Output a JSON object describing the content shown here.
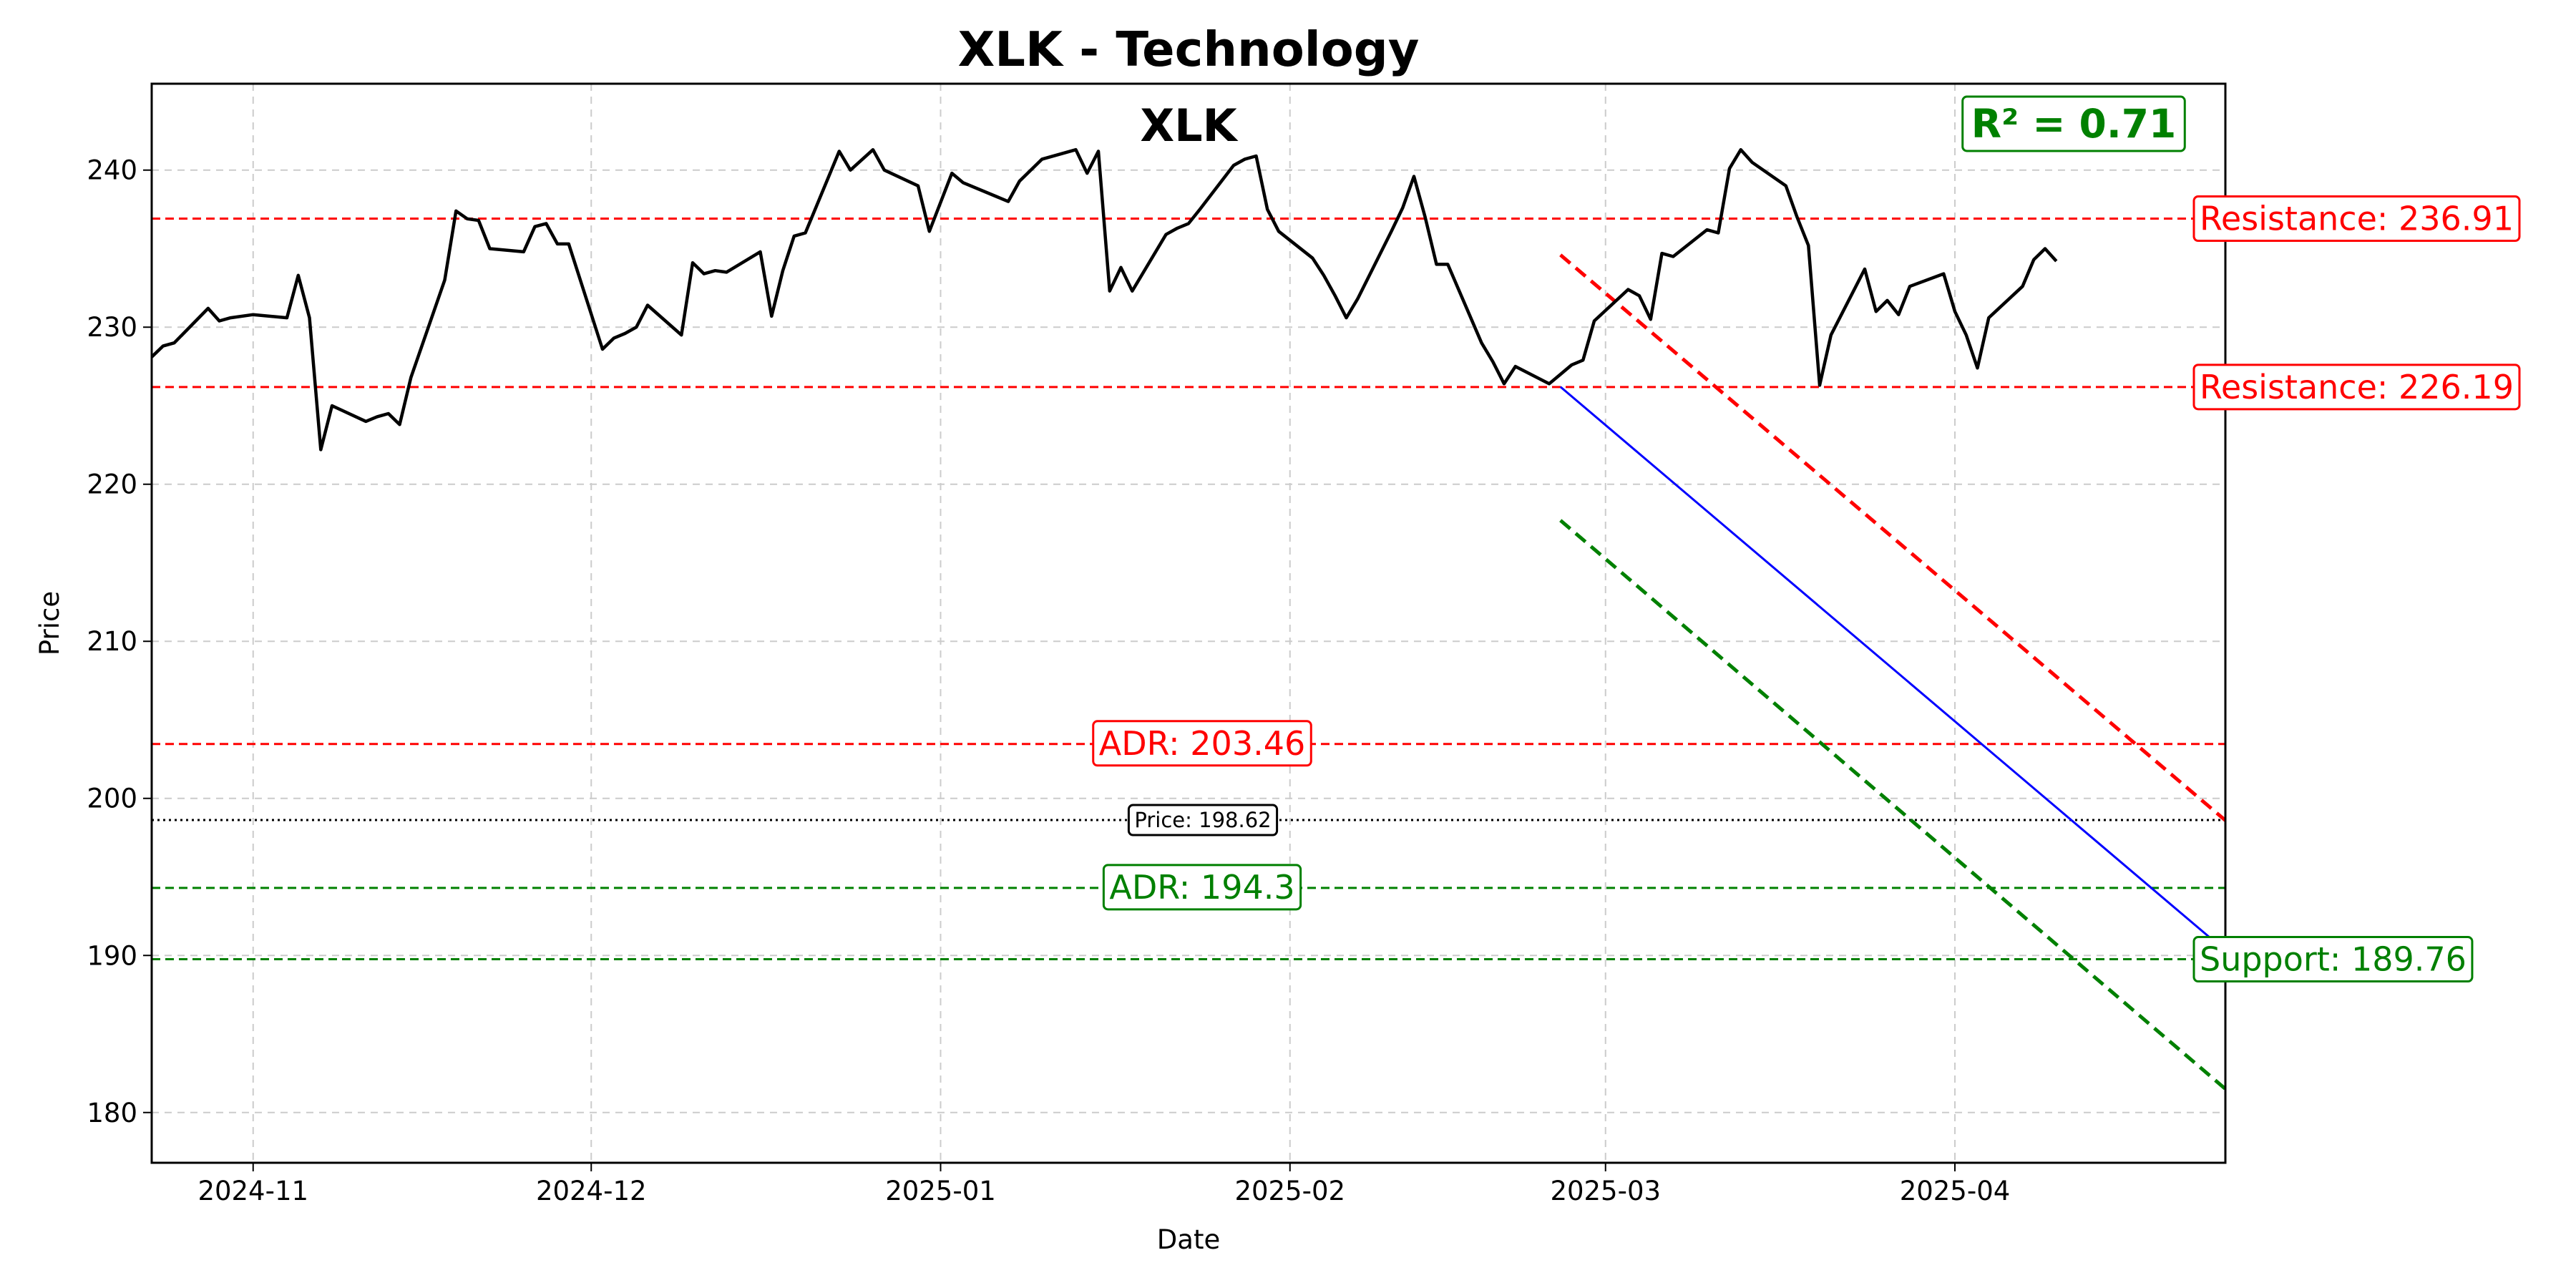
{
  "chart_data": {
    "type": "line",
    "title": "XLK - Technology",
    "subtitle": "XLK",
    "xlabel": "Date",
    "ylabel": "Price",
    "xlim": [
      "2024-10-23",
      "2025-04-25"
    ],
    "ylim": [
      176.8,
      245.5
    ],
    "grid": true,
    "x_ticks": [
      {
        "date": "2024-11-01",
        "label": "2024-11"
      },
      {
        "date": "2024-12-01",
        "label": "2024-12"
      },
      {
        "date": "2025-01-01",
        "label": "2025-01"
      },
      {
        "date": "2025-02-01",
        "label": "2025-02"
      },
      {
        "date": "2025-03-01",
        "label": "2025-03"
      },
      {
        "date": "2025-04-01",
        "label": "2025-04"
      }
    ],
    "y_ticks": [
      180,
      190,
      200,
      210,
      220,
      230,
      240
    ],
    "series": [
      {
        "color": "#000000",
        "points": [
          [
            "2024-10-23",
            228.1
          ],
          [
            "2024-10-24",
            228.8
          ],
          [
            "2024-10-25",
            229.0
          ],
          [
            "2024-10-28",
            231.2
          ],
          [
            "2024-10-29",
            230.4
          ],
          [
            "2024-10-30",
            230.6
          ],
          [
            "2024-11-01",
            230.8
          ],
          [
            "2024-11-04",
            230.6
          ],
          [
            "2024-11-05",
            233.3
          ],
          [
            "2024-11-06",
            230.6
          ],
          [
            "2024-11-07",
            222.2
          ],
          [
            "2024-11-08",
            225.0
          ],
          [
            "2024-11-11",
            224.0
          ],
          [
            "2024-11-12",
            224.3
          ],
          [
            "2024-11-13",
            224.5
          ],
          [
            "2024-11-14",
            223.8
          ],
          [
            "2024-11-15",
            226.8
          ],
          [
            "2024-11-18",
            233.0
          ],
          [
            "2024-11-19",
            237.4
          ],
          [
            "2024-11-20",
            236.9
          ],
          [
            "2024-11-21",
            236.8
          ],
          [
            "2024-11-22",
            235.0
          ],
          [
            "2024-11-25",
            234.8
          ],
          [
            "2024-11-26",
            236.4
          ],
          [
            "2024-11-27",
            236.6
          ],
          [
            "2024-11-28",
            235.3
          ],
          [
            "2024-11-29",
            235.3
          ],
          [
            "2024-12-02",
            228.6
          ],
          [
            "2024-12-03",
            229.3
          ],
          [
            "2024-12-04",
            229.6
          ],
          [
            "2024-12-05",
            230.0
          ],
          [
            "2024-12-06",
            231.4
          ],
          [
            "2024-12-09",
            229.5
          ],
          [
            "2024-12-10",
            234.1
          ],
          [
            "2024-12-11",
            233.4
          ],
          [
            "2024-12-12",
            233.6
          ],
          [
            "2024-12-13",
            233.5
          ],
          [
            "2024-12-16",
            234.8
          ],
          [
            "2024-12-17",
            230.7
          ],
          [
            "2024-12-18",
            233.6
          ],
          [
            "2024-12-19",
            235.8
          ],
          [
            "2024-12-20",
            236.0
          ],
          [
            "2024-12-23",
            241.2
          ],
          [
            "2024-12-24",
            240.0
          ],
          [
            "2024-12-26",
            241.3
          ],
          [
            "2024-12-27",
            240.0
          ],
          [
            "2024-12-30",
            239.0
          ],
          [
            "2024-12-31",
            236.1
          ],
          [
            "2025-01-02",
            239.8
          ],
          [
            "2025-01-03",
            239.2
          ],
          [
            "2025-01-06",
            238.3
          ],
          [
            "2025-01-07",
            238.0
          ],
          [
            "2025-01-08",
            239.3
          ],
          [
            "2025-01-10",
            240.7
          ],
          [
            "2025-01-13",
            241.3
          ],
          [
            "2025-01-14",
            239.8
          ],
          [
            "2025-01-15",
            241.2
          ],
          [
            "2025-01-16",
            232.3
          ],
          [
            "2025-01-17",
            233.8
          ],
          [
            "2025-01-18",
            232.3
          ],
          [
            "2025-01-21",
            235.9
          ],
          [
            "2025-01-22",
            236.3
          ],
          [
            "2025-01-23",
            236.6
          ],
          [
            "2025-01-24",
            237.5
          ],
          [
            "2025-01-27",
            240.3
          ],
          [
            "2025-01-28",
            240.7
          ],
          [
            "2025-01-29",
            240.9
          ],
          [
            "2025-01-30",
            237.5
          ],
          [
            "2025-01-31",
            236.1
          ],
          [
            "2025-02-03",
            234.4
          ],
          [
            "2025-02-04",
            233.3
          ],
          [
            "2025-02-05",
            232.0
          ],
          [
            "2025-02-06",
            230.6
          ],
          [
            "2025-02-07",
            231.8
          ],
          [
            "2025-02-10",
            236.1
          ],
          [
            "2025-02-11",
            237.6
          ],
          [
            "2025-02-12",
            239.6
          ],
          [
            "2025-02-13",
            237.0
          ],
          [
            "2025-02-14",
            234.0
          ],
          [
            "2025-02-15",
            234.0
          ],
          [
            "2025-02-18",
            229.0
          ],
          [
            "2025-02-19",
            227.8
          ],
          [
            "2025-02-20",
            226.4
          ],
          [
            "2025-02-21",
            227.5
          ],
          [
            "2025-02-24",
            226.4
          ],
          [
            "2025-02-25",
            227.0
          ],
          [
            "2025-02-26",
            227.6
          ],
          [
            "2025-02-27",
            227.9
          ],
          [
            "2025-02-28",
            230.4
          ],
          [
            "2025-03-03",
            232.4
          ],
          [
            "2025-03-04",
            232.0
          ],
          [
            "2025-03-05",
            230.5
          ],
          [
            "2025-03-06",
            234.7
          ],
          [
            "2025-03-07",
            234.5
          ],
          [
            "2025-03-10",
            236.2
          ],
          [
            "2025-03-11",
            236.0
          ],
          [
            "2025-03-12",
            240.1
          ],
          [
            "2025-03-13",
            241.3
          ],
          [
            "2025-03-14",
            240.5
          ],
          [
            "2025-03-17",
            239.0
          ],
          [
            "2025-03-18",
            237.0
          ],
          [
            "2025-03-19",
            235.2
          ],
          [
            "2025-03-20",
            226.3
          ],
          [
            "2025-03-21",
            229.5
          ],
          [
            "2025-03-24",
            233.7
          ],
          [
            "2025-03-25",
            231.0
          ],
          [
            "2025-03-26",
            231.7
          ],
          [
            "2025-03-27",
            230.8
          ],
          [
            "2025-03-28",
            232.6
          ],
          [
            "2025-03-31",
            233.4
          ],
          [
            "2025-04-01",
            231.0
          ],
          [
            "2025-04-02",
            229.5
          ],
          [
            "2025-04-03",
            227.4
          ],
          [
            "2025-04-04",
            230.6
          ],
          [
            "2025-04-07",
            232.6
          ],
          [
            "2025-04-08",
            234.3
          ],
          [
            "2025-04-09",
            235.0
          ],
          [
            "2025-04-10",
            234.2
          ]
        ]
      }
    ],
    "horizontal_lines": [
      {
        "value": 236.91,
        "label": "Resistance: 236.91",
        "color": "#ff0000",
        "style": "dashed"
      },
      {
        "value": 226.19,
        "label": "Resistance: 226.19",
        "color": "#ff0000",
        "style": "dashed"
      },
      {
        "value": 203.46,
        "label": "ADR: 203.46",
        "color": "#ff0000",
        "style": "dashed"
      },
      {
        "value": 198.62,
        "label": "Price: 198.62",
        "color": "#000000",
        "style": "dotted"
      },
      {
        "value": 194.3,
        "label": "ADR: 194.3",
        "color": "#008000",
        "style": "dashed"
      },
      {
        "value": 189.76,
        "label": "Support: 189.76",
        "color": "#008000",
        "style": "dashed"
      }
    ],
    "regression": {
      "x_start": "2025-02-25",
      "x_end": "2025-04-25",
      "center": [
        226.2,
        190.3
      ],
      "upper": [
        234.6,
        198.6
      ],
      "lower": [
        217.7,
        181.5
      ],
      "colors": {
        "center": "#0000ff",
        "upper": "#ff0000",
        "lower": "#008000"
      }
    },
    "r_squared_label": "R² = 0.71",
    "colors": {
      "resistance": "#ff0000",
      "support": "#008000",
      "price": "#000000",
      "grid": "#cccccc",
      "trend": "#0000ff"
    }
  }
}
